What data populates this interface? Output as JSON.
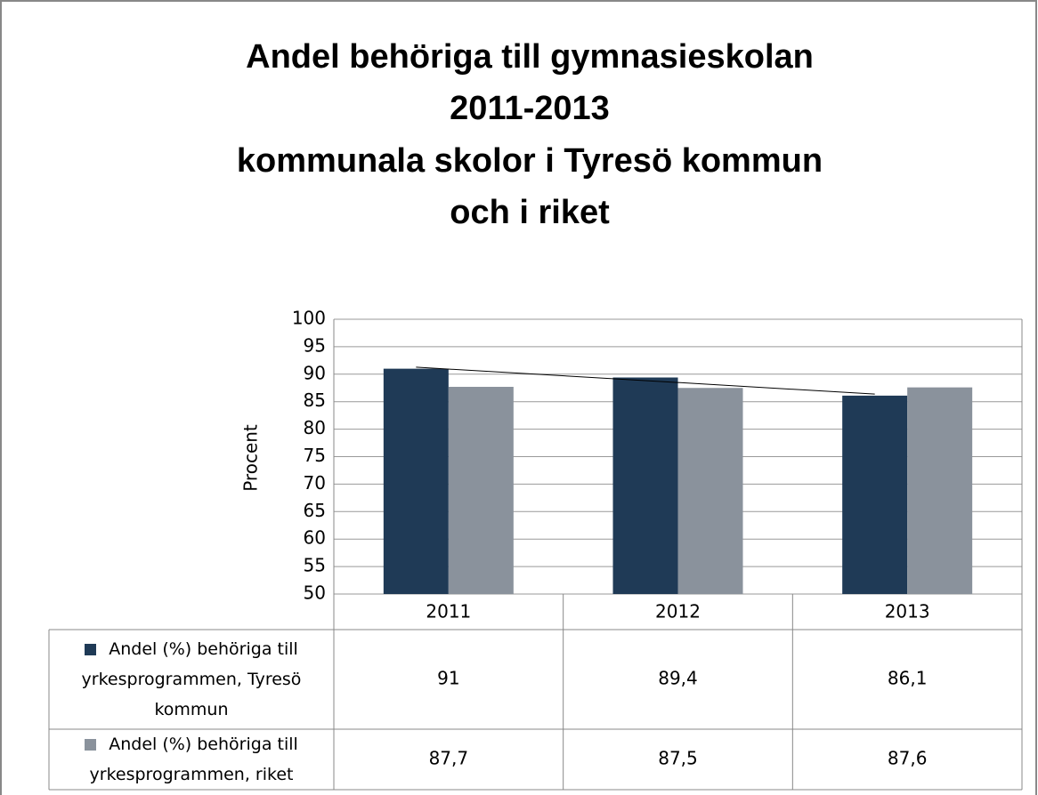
{
  "chart_data": {
    "type": "bar",
    "title": [
      "Andel behöriga till gymnasieskolan",
      "2011-2013",
      "kommunala skolor i Tyresö kommun",
      "och i riket"
    ],
    "ylabel": "Procent",
    "categories": [
      "2011",
      "2012",
      "2013"
    ],
    "series": [
      {
        "name": "Andel (%) behöriga till yrkesprogrammen, Tyresö kommun",
        "color": "#1f3a56",
        "values": [
          91,
          89.4,
          86.1
        ],
        "value_labels": [
          "91",
          "89,4",
          "86,1"
        ],
        "trendline": "linear"
      },
      {
        "name": "Andel (%) behöriga till yrkesprogrammen, riket",
        "color": "#8a929c",
        "values": [
          87.7,
          87.5,
          87.6
        ],
        "value_labels": [
          "87,7",
          "87,5",
          "87,6"
        ]
      }
    ],
    "ylim": [
      50,
      100
    ],
    "yticks": [
      50,
      55,
      60,
      65,
      70,
      75,
      80,
      85,
      90,
      95,
      100
    ],
    "grid": true,
    "data_table": true
  }
}
